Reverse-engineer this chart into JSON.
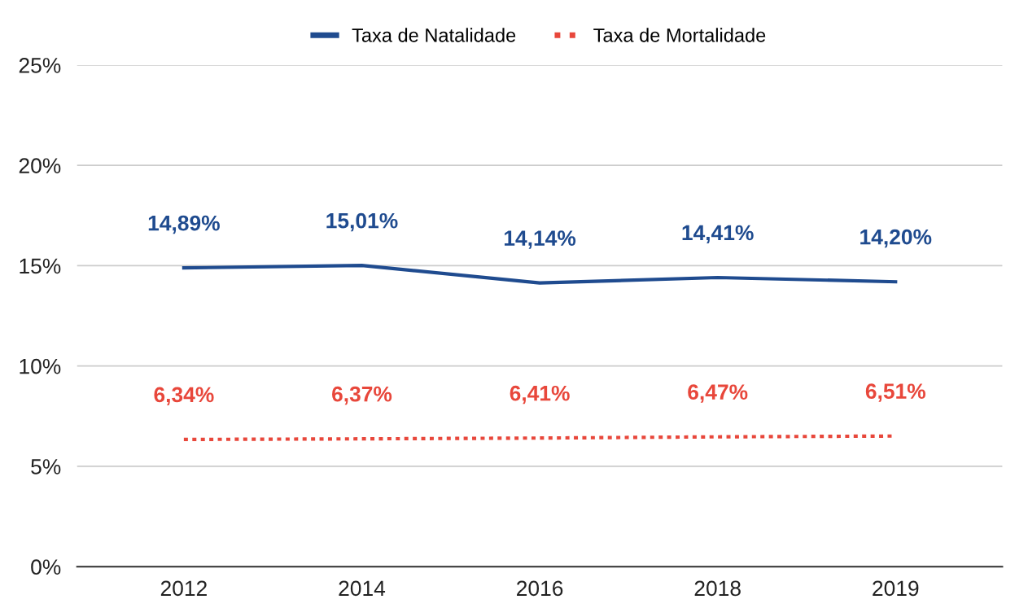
{
  "chart_data": {
    "type": "line",
    "categories": [
      "2012",
      "2014",
      "2016",
      "2018",
      "2019"
    ],
    "series": [
      {
        "name": "Taxa de Natalidade",
        "color": "#1f4b8f",
        "line_style": "solid",
        "values": [
          14.89,
          15.01,
          14.14,
          14.41,
          14.2
        ],
        "value_labels": [
          "14,89%",
          "15,01%",
          "14,14%",
          "14,41%",
          "14,20%"
        ]
      },
      {
        "name": "Taxa de Mortalidade",
        "color": "#e8473b",
        "line_style": "dotted",
        "values": [
          6.34,
          6.37,
          6.41,
          6.47,
          6.51
        ],
        "value_labels": [
          "6,34%",
          "6,37%",
          "6,41%",
          "6,47%",
          "6,51%"
        ]
      }
    ],
    "ylim": [
      0,
      25
    ],
    "yticks": [
      {
        "value": 0,
        "label": "0%"
      },
      {
        "value": 5,
        "label": "5%"
      },
      {
        "value": 10,
        "label": "10%"
      },
      {
        "value": 15,
        "label": "15%"
      },
      {
        "value": 20,
        "label": "20%"
      },
      {
        "value": 25,
        "label": "25%"
      }
    ],
    "grid": "y",
    "legend": "top",
    "marker": "none"
  }
}
